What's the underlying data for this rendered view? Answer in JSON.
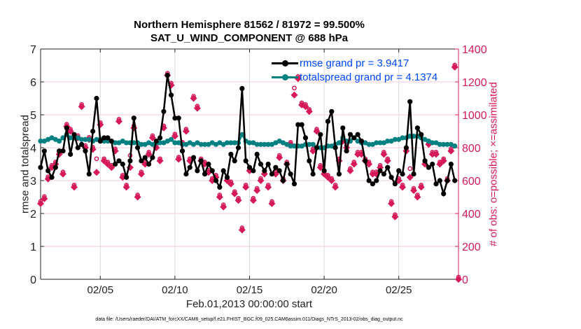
{
  "chart_data": {
    "type": "line",
    "title": "Northern Hemisphere 81562 / 81972 = 99.500%",
    "subtitle": "SAT_U_WIND_COMPONENT @ 688 hPa",
    "xlabel": "Feb.01,2013 00:00:00 start",
    "ylabel_left": "rmse and totalspread",
    "ylabel_right": "# of obs: o=possible; ×=assimilated",
    "footnote": "data file: /Users/raeder/DAI/ATM_forcXX/CAM6_setup/f.e21.FHIST_BGC.f09_025.CAM6assim.011/Diags_NTrS_2013-02/obs_diag_output.nc",
    "x_start": "2013-02-01 00:00",
    "x_step_hours": 6,
    "xlim_days": [
      1,
      29
    ],
    "x_ticks": [
      {
        "day": 5,
        "label": "02/05"
      },
      {
        "day": 10,
        "label": "02/10"
      },
      {
        "day": 15,
        "label": "02/15"
      },
      {
        "day": 20,
        "label": "02/20"
      },
      {
        "day": 25,
        "label": "02/25"
      }
    ],
    "ylim_left": [
      0,
      7
    ],
    "yticks_left": [
      "0",
      "1",
      "2",
      "3",
      "4",
      "5",
      "6",
      "7"
    ],
    "ylim_right": [
      0,
      1400
    ],
    "yticks_right": [
      "0",
      "200",
      "400",
      "600",
      "800",
      "1000",
      "1200",
      "1400"
    ],
    "grid": true,
    "legend_placement": "top-right",
    "colors": {
      "rmse": "#000000",
      "totalspread": "#008080",
      "obs": "#d6195b",
      "legend_text": "#0047ff",
      "grid": "#f2c9d8"
    },
    "series": [
      {
        "name": "rmse grand pr = 3.9417",
        "axis": "left",
        "values": [
          3.4,
          3.9,
          3.3,
          3.1,
          3.4,
          3.9,
          3.9,
          4.6,
          3.8,
          4.4,
          4.0,
          4.1,
          3.9,
          3.2,
          4.5,
          5.5,
          4.2,
          4.3,
          4.3,
          4.2,
          3.5,
          3.6,
          3.5,
          3.1,
          3.6,
          4.9,
          4.0,
          3.6,
          3.7,
          3.5,
          3.7,
          4.2,
          4.3,
          5.1,
          6.2,
          5.6,
          4.9,
          4.9,
          3.9,
          3.2,
          3.4,
          3.7,
          3.3,
          3.6,
          3.2,
          3.5,
          3.3,
          3.0,
          2.8,
          3.3,
          3.1,
          3.8,
          3.6,
          4.0,
          5.8,
          3.6,
          3.4,
          3.3,
          3.8,
          3.5,
          3.3,
          3.5,
          3.2,
          3.4,
          3.3,
          3.0,
          3.5,
          3.2,
          2.9,
          4.7,
          4.7,
          4.3,
          3.6,
          3.2,
          4.0,
          4.4,
          3.3,
          4.8,
          5.1,
          4.0,
          3.2,
          4.6,
          3.9,
          4.4,
          4.3,
          4.4,
          4.2,
          3.6,
          3.0,
          2.9,
          3.0,
          3.3,
          3.2,
          3.4,
          3.1,
          2.9,
          3.3,
          3.2,
          4.0,
          5.4,
          3.2,
          4.6,
          4.4,
          3.6,
          3.4,
          3.5,
          2.9,
          3.0,
          2.6,
          3.0,
          3.5,
          3.0
        ]
      },
      {
        "name": "totalspread grand pr = 4.1374",
        "axis": "left",
        "values": [
          4.2,
          4.2,
          4.25,
          4.3,
          4.25,
          4.2,
          4.3,
          4.4,
          4.3,
          4.3,
          4.3,
          4.25,
          4.25,
          4.25,
          4.2,
          4.25,
          4.25,
          4.2,
          4.2,
          4.2,
          4.15,
          4.15,
          4.2,
          4.15,
          4.15,
          4.15,
          4.15,
          4.1,
          4.1,
          4.15,
          4.1,
          4.15,
          4.15,
          4.15,
          4.2,
          4.25,
          4.15,
          4.15,
          4.1,
          4.1,
          4.15,
          4.1,
          4.15,
          4.1,
          4.1,
          4.1,
          4.15,
          4.1,
          4.15,
          4.1,
          4.15,
          4.15,
          4.15,
          4.15,
          4.4,
          4.2,
          4.15,
          4.15,
          4.1,
          4.1,
          4.1,
          4.1,
          4.1,
          4.15,
          4.2,
          4.15,
          4.1,
          4.05,
          4.05,
          4.05,
          4.05,
          4.1,
          4.1,
          4.1,
          4.0,
          4.0,
          4.0,
          4.05,
          4.05,
          4.1,
          4.15,
          4.3,
          4.2,
          4.2,
          4.3,
          4.2,
          4.15,
          4.15,
          4.1,
          4.1,
          4.15,
          4.15,
          4.15,
          4.2,
          4.2,
          4.25,
          4.25,
          4.3,
          4.3,
          4.35,
          4.35,
          4.35,
          4.3,
          4.25,
          4.2,
          4.15,
          4.15,
          4.1,
          4.1,
          4.1,
          4.1,
          4.05
        ]
      },
      {
        "name": "assimilated",
        "axis": "right",
        "values": [
          460,
          490,
          610,
          680,
          700,
          760,
          640,
          930,
          900,
          560,
          860,
          1050,
          800,
          850,
          790,
          650,
          940,
          720,
          700,
          680,
          780,
          960,
          620,
          560,
          680,
          920,
          500,
          640,
          700,
          760,
          860,
          800,
          720,
          920,
          1240,
          1180,
          870,
          730,
          820,
          900,
          720,
          1100,
          1040,
          720,
          700,
          650,
          600,
          620,
          500,
          440,
          600,
          580,
          520,
          480,
          300,
          560,
          660,
          480,
          540,
          600,
          640,
          560,
          460,
          640,
          740,
          600,
          700,
          820,
          1120,
          1220,
          1060,
          1050,
          1020,
          780,
          900,
          680,
          640,
          620,
          600,
          560,
          720,
          840,
          800,
          660,
          700,
          760,
          760,
          720,
          700,
          640,
          640,
          680,
          760,
          720,
          460,
          380,
          600,
          560,
          780,
          620,
          540,
          500,
          560,
          700,
          820,
          760,
          760,
          700,
          720,
          600,
          780,
          1290,
          0
        ]
      },
      {
        "name": "possible",
        "axis": "right",
        "values": [
          460,
          490,
          610,
          680,
          700,
          760,
          640,
          930,
          900,
          560,
          860,
          1050,
          800,
          850,
          790,
          720,
          940,
          720,
          700,
          680,
          780,
          960,
          620,
          560,
          740,
          920,
          500,
          640,
          700,
          760,
          860,
          800,
          720,
          920,
          1240,
          1180,
          870,
          730,
          820,
          900,
          720,
          1100,
          1040,
          720,
          700,
          650,
          600,
          620,
          500,
          440,
          600,
          580,
          520,
          480,
          300,
          560,
          660,
          480,
          540,
          600,
          640,
          560,
          460,
          640,
          740,
          600,
          700,
          820,
          1150,
          1220,
          1060,
          1050,
          1020,
          780,
          900,
          680,
          640,
          620,
          600,
          560,
          720,
          840,
          800,
          660,
          700,
          760,
          760,
          720,
          700,
          640,
          640,
          680,
          760,
          720,
          460,
          380,
          600,
          560,
          780,
          660,
          540,
          500,
          560,
          700,
          820,
          760,
          760,
          700,
          720,
          600,
          780,
          1290,
          0
        ]
      }
    ]
  }
}
